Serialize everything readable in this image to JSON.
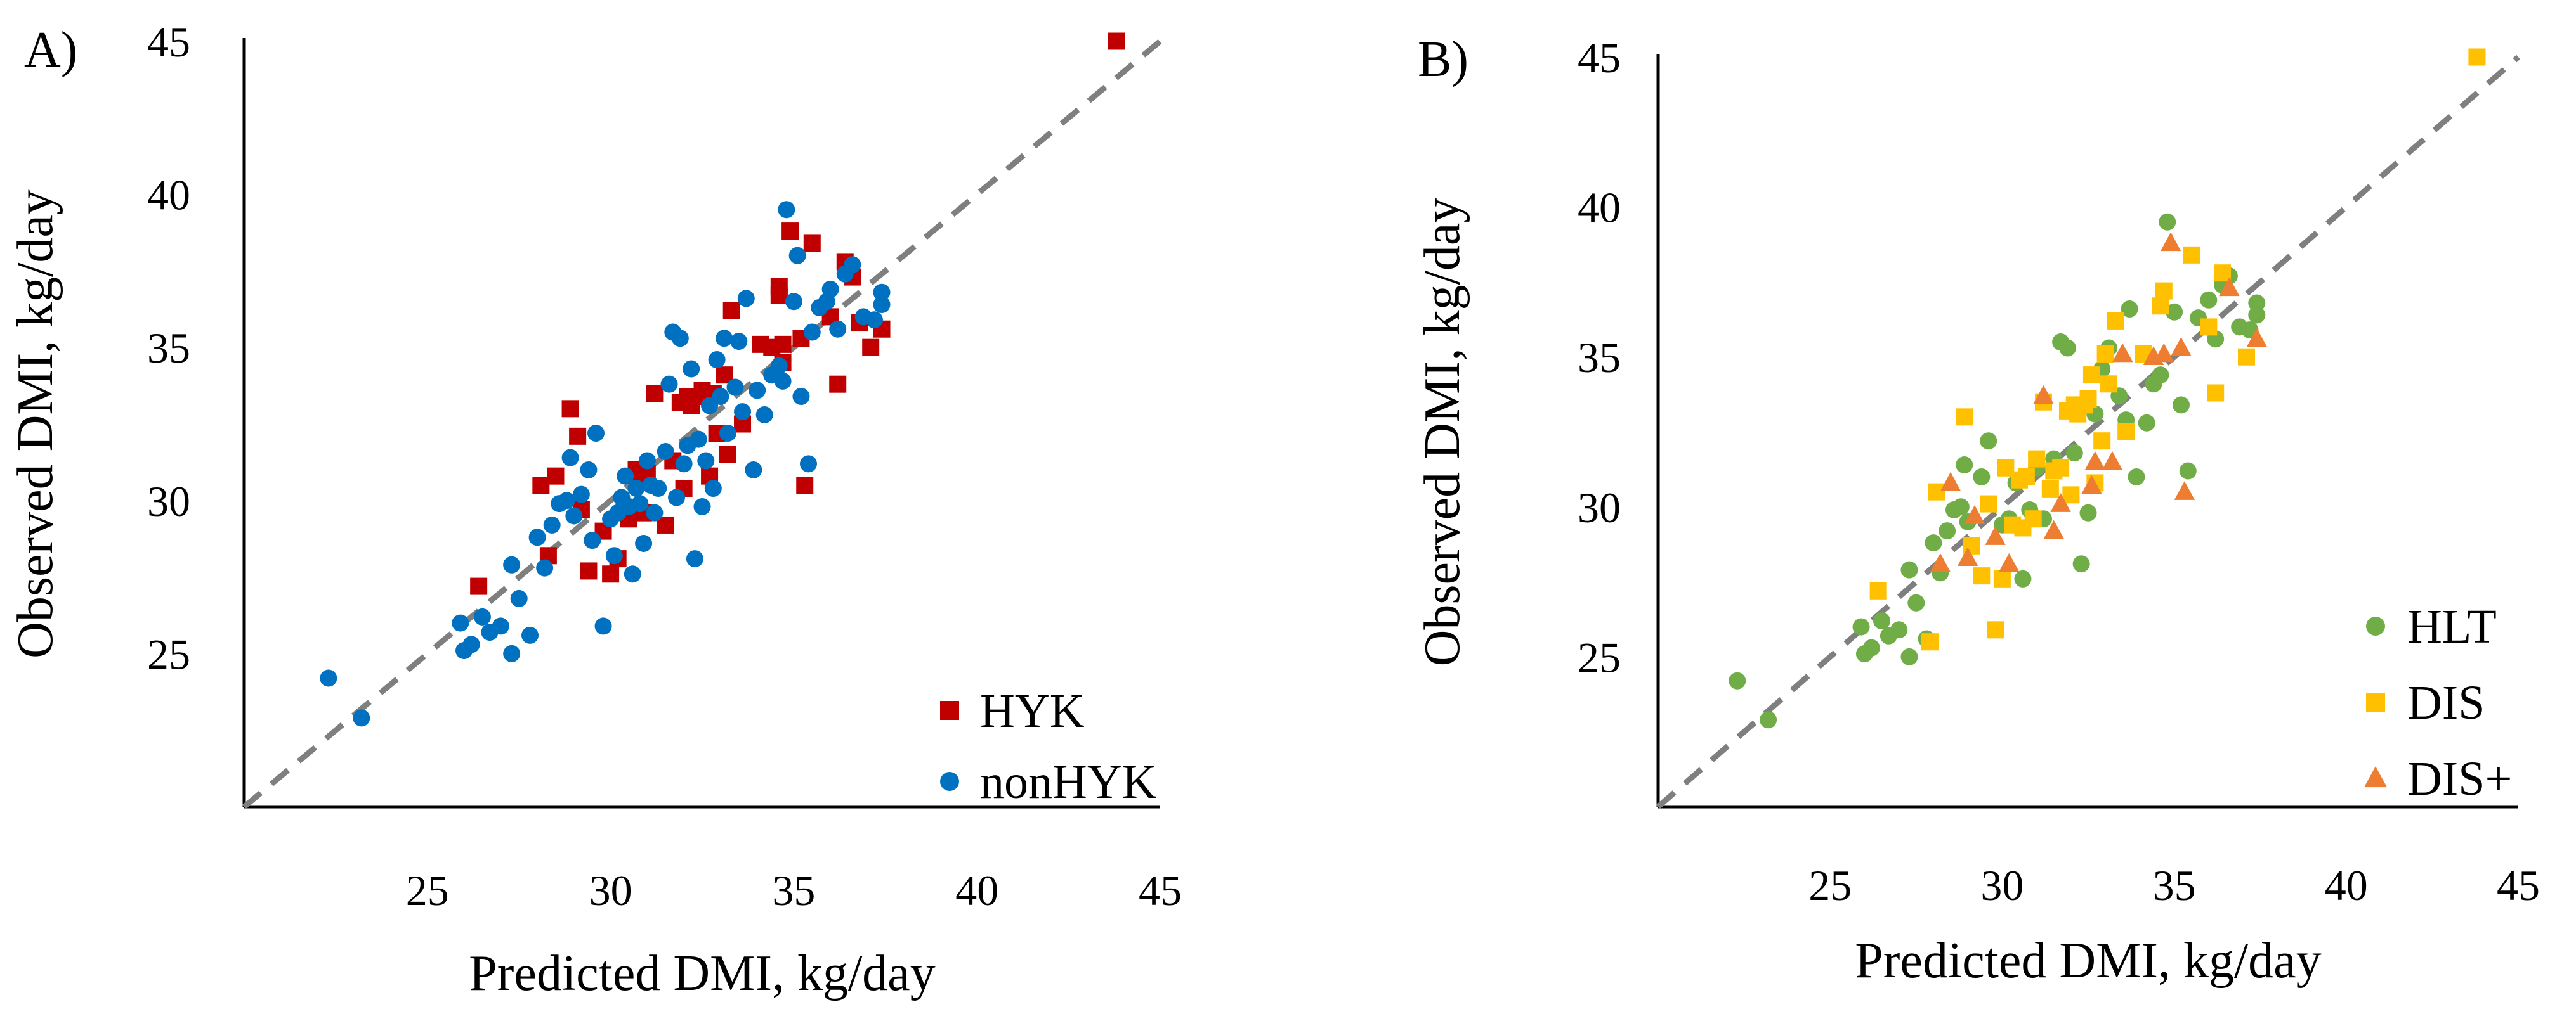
{
  "chart_data": [
    {
      "type": "scatter",
      "panel_label": "A)",
      "xlabel": "Predicted DMI, kg/day",
      "ylabel": "Observed DMI, kg/day",
      "xlim": [
        20,
        45
      ],
      "ylim": [
        20,
        45
      ],
      "x_ticks": [
        25,
        30,
        35,
        40,
        45
      ],
      "y_ticks": [
        25,
        30,
        35,
        40,
        45
      ],
      "reference_line": {
        "style": "dashed",
        "color": "#7f7f7f",
        "from": [
          20,
          20
        ],
        "to": [
          45,
          45
        ]
      },
      "legend_position": "bottom-right",
      "series": [
        {
          "name": "HYK",
          "marker": "square",
          "color": "#c00000",
          "points": [
            [
              43.8,
              45.0
            ],
            [
              26.4,
              27.2
            ],
            [
              28.1,
              30.5
            ],
            [
              28.5,
              30.8
            ],
            [
              28.9,
              33.0
            ],
            [
              29.2,
              29.7
            ],
            [
              29.4,
              27.7
            ],
            [
              29.8,
              29.0
            ],
            [
              30.0,
              27.6
            ],
            [
              30.2,
              28.1
            ],
            [
              30.5,
              29.4
            ],
            [
              30.7,
              31.0
            ],
            [
              30.9,
              29.6
            ],
            [
              31.2,
              33.5
            ],
            [
              31.0,
              30.9
            ],
            [
              31.5,
              29.2
            ],
            [
              31.7,
              31.3
            ],
            [
              31.9,
              33.2
            ],
            [
              32.0,
              30.4
            ],
            [
              32.1,
              33.4
            ],
            [
              32.2,
              33.1
            ],
            [
              32.4,
              33.4
            ],
            [
              32.5,
              33.6
            ],
            [
              32.7,
              30.8
            ],
            [
              32.9,
              32.2
            ],
            [
              33.1,
              34.1
            ],
            [
              33.2,
              31.5
            ],
            [
              33.3,
              36.2
            ],
            [
              33.6,
              32.5
            ],
            [
              34.1,
              35.1
            ],
            [
              34.4,
              35.0
            ],
            [
              34.6,
              36.7
            ],
            [
              34.7,
              35.1
            ],
            [
              34.9,
              38.8
            ],
            [
              35.2,
              35.3
            ],
            [
              35.5,
              38.4
            ],
            [
              35.3,
              30.5
            ],
            [
              36.0,
              36.0
            ],
            [
              36.2,
              33.8
            ],
            [
              36.4,
              37.8
            ],
            [
              36.6,
              37.3
            ],
            [
              36.8,
              35.8
            ],
            [
              37.1,
              35.0
            ],
            [
              37.4,
              35.6
            ],
            [
              34.7,
              34.5
            ],
            [
              34.6,
              37.0
            ],
            [
              32.8,
              33.5
            ],
            [
              28.3,
              28.2
            ],
            [
              30.8,
              30.6
            ],
            [
              29.1,
              32.1
            ]
          ]
        },
        {
          "name": "nonHYK",
          "marker": "circle",
          "color": "#0070c0",
          "points": [
            [
              22.3,
              24.2
            ],
            [
              23.2,
              22.9
            ],
            [
              25.9,
              26.0
            ],
            [
              26.0,
              25.1
            ],
            [
              26.2,
              25.3
            ],
            [
              26.5,
              26.2
            ],
            [
              26.7,
              25.7
            ],
            [
              27.0,
              25.9
            ],
            [
              27.3,
              27.9
            ],
            [
              27.3,
              25.0
            ],
            [
              27.5,
              26.8
            ],
            [
              27.8,
              25.6
            ],
            [
              28.0,
              28.8
            ],
            [
              28.2,
              27.8
            ],
            [
              28.4,
              29.2
            ],
            [
              28.6,
              29.9
            ],
            [
              28.8,
              30.0
            ],
            [
              28.9,
              31.4
            ],
            [
              29.0,
              29.5
            ],
            [
              29.2,
              30.2
            ],
            [
              29.4,
              31.0
            ],
            [
              29.5,
              28.7
            ],
            [
              29.6,
              32.2
            ],
            [
              29.8,
              25.9
            ],
            [
              30.0,
              29.4
            ],
            [
              30.1,
              28.2
            ],
            [
              30.2,
              29.6
            ],
            [
              30.3,
              30.1
            ],
            [
              30.4,
              30.8
            ],
            [
              30.5,
              29.8
            ],
            [
              30.6,
              27.6
            ],
            [
              30.7,
              30.4
            ],
            [
              30.8,
              29.9
            ],
            [
              30.9,
              28.6
            ],
            [
              31.0,
              31.3
            ],
            [
              31.1,
              30.5
            ],
            [
              31.2,
              29.6
            ],
            [
              31.3,
              30.4
            ],
            [
              31.5,
              31.6
            ],
            [
              31.6,
              33.8
            ],
            [
              31.7,
              35.5
            ],
            [
              31.8,
              30.1
            ],
            [
              31.9,
              35.3
            ],
            [
              32.0,
              31.2
            ],
            [
              32.1,
              31.8
            ],
            [
              32.2,
              34.3
            ],
            [
              32.3,
              28.1
            ],
            [
              32.4,
              32.0
            ],
            [
              32.5,
              29.8
            ],
            [
              32.6,
              31.3
            ],
            [
              32.7,
              33.1
            ],
            [
              32.8,
              30.4
            ],
            [
              32.9,
              34.6
            ],
            [
              33.0,
              33.4
            ],
            [
              33.1,
              35.3
            ],
            [
              33.2,
              32.2
            ],
            [
              33.4,
              33.7
            ],
            [
              33.5,
              35.2
            ],
            [
              33.6,
              32.9
            ],
            [
              33.7,
              36.6
            ],
            [
              33.9,
              31.0
            ],
            [
              34.0,
              33.6
            ],
            [
              34.2,
              32.8
            ],
            [
              34.4,
              34.1
            ],
            [
              34.6,
              34.4
            ],
            [
              34.7,
              33.9
            ],
            [
              34.8,
              39.5
            ],
            [
              35.0,
              36.5
            ],
            [
              35.1,
              38.0
            ],
            [
              35.2,
              33.4
            ],
            [
              35.4,
              31.2
            ],
            [
              35.5,
              35.5
            ],
            [
              35.7,
              36.3
            ],
            [
              35.9,
              36.5
            ],
            [
              36.0,
              36.9
            ],
            [
              36.2,
              35.6
            ],
            [
              36.4,
              37.4
            ],
            [
              36.6,
              37.7
            ],
            [
              36.9,
              36.0
            ],
            [
              37.2,
              35.9
            ],
            [
              37.4,
              36.4
            ],
            [
              37.4,
              36.8
            ]
          ]
        }
      ]
    },
    {
      "type": "scatter",
      "panel_label": "B)",
      "xlabel": "Predicted DMI, kg/day",
      "ylabel": "Observed DMI, kg/day",
      "xlim": [
        20,
        45
      ],
      "ylim": [
        20,
        45
      ],
      "x_ticks": [
        25,
        30,
        35,
        40,
        45
      ],
      "y_ticks": [
        25,
        30,
        35,
        40,
        45
      ],
      "reference_line": {
        "style": "dashed",
        "color": "#7f7f7f",
        "from": [
          20,
          20
        ],
        "to": [
          45,
          45
        ]
      },
      "legend_position": "bottom-right",
      "series": [
        {
          "name": "HLT",
          "marker": "circle",
          "color": "#70ad47",
          "points": [
            [
              22.3,
              24.2
            ],
            [
              23.2,
              22.9
            ],
            [
              25.9,
              26.0
            ],
            [
              26.0,
              25.1
            ],
            [
              26.2,
              25.3
            ],
            [
              26.5,
              26.2
            ],
            [
              26.7,
              25.7
            ],
            [
              27.0,
              25.9
            ],
            [
              27.3,
              27.9
            ],
            [
              27.3,
              25.0
            ],
            [
              27.5,
              26.8
            ],
            [
              27.8,
              25.6
            ],
            [
              28.0,
              28.8
            ],
            [
              28.2,
              27.8
            ],
            [
              28.4,
              29.2
            ],
            [
              28.6,
              29.9
            ],
            [
              28.8,
              30.0
            ],
            [
              28.9,
              31.4
            ],
            [
              29.0,
              29.5
            ],
            [
              29.4,
              31.0
            ],
            [
              29.6,
              32.2
            ],
            [
              30.0,
              29.4
            ],
            [
              30.2,
              29.6
            ],
            [
              30.4,
              30.8
            ],
            [
              30.6,
              27.6
            ],
            [
              30.8,
              29.9
            ],
            [
              31.0,
              31.3
            ],
            [
              31.2,
              29.6
            ],
            [
              31.5,
              31.6
            ],
            [
              31.7,
              35.5
            ],
            [
              31.9,
              35.3
            ],
            [
              32.1,
              31.8
            ],
            [
              32.3,
              28.1
            ],
            [
              32.5,
              29.8
            ],
            [
              32.7,
              33.1
            ],
            [
              32.9,
              34.6
            ],
            [
              33.1,
              35.3
            ],
            [
              33.4,
              33.7
            ],
            [
              33.6,
              32.9
            ],
            [
              33.7,
              36.6
            ],
            [
              33.9,
              31.0
            ],
            [
              34.2,
              32.8
            ],
            [
              34.4,
              34.1
            ],
            [
              34.6,
              34.4
            ],
            [
              34.8,
              39.5
            ],
            [
              35.0,
              36.5
            ],
            [
              35.2,
              33.4
            ],
            [
              35.4,
              31.2
            ],
            [
              35.7,
              36.3
            ],
            [
              36.0,
              36.9
            ],
            [
              36.2,
              35.6
            ],
            [
              36.4,
              37.4
            ],
            [
              36.6,
              37.7
            ],
            [
              36.9,
              36.0
            ],
            [
              37.2,
              35.9
            ],
            [
              37.4,
              36.4
            ],
            [
              37.4,
              36.8
            ]
          ]
        },
        {
          "name": "DIS",
          "marker": "square",
          "color": "#ffc000",
          "points": [
            [
              43.8,
              45.0
            ],
            [
              26.4,
              27.2
            ],
            [
              28.1,
              30.5
            ],
            [
              27.9,
              25.5
            ],
            [
              28.9,
              33.0
            ],
            [
              29.1,
              28.7
            ],
            [
              29.4,
              27.7
            ],
            [
              29.6,
              30.1
            ],
            [
              29.8,
              25.9
            ],
            [
              30.0,
              27.6
            ],
            [
              30.1,
              31.3
            ],
            [
              30.3,
              29.4
            ],
            [
              30.5,
              30.9
            ],
            [
              30.6,
              29.3
            ],
            [
              30.7,
              31.0
            ],
            [
              30.9,
              29.6
            ],
            [
              31.0,
              31.6
            ],
            [
              31.2,
              33.5
            ],
            [
              31.4,
              30.6
            ],
            [
              31.7,
              31.3
            ],
            [
              31.9,
              33.2
            ],
            [
              32.0,
              30.4
            ],
            [
              32.1,
              33.4
            ],
            [
              32.2,
              33.1
            ],
            [
              32.4,
              33.4
            ],
            [
              32.5,
              33.6
            ],
            [
              32.7,
              30.8
            ],
            [
              32.9,
              32.2
            ],
            [
              33.1,
              34.1
            ],
            [
              33.3,
              36.2
            ],
            [
              33.6,
              32.5
            ],
            [
              34.1,
              35.1
            ],
            [
              34.6,
              36.7
            ],
            [
              34.7,
              37.2
            ],
            [
              35.5,
              38.4
            ],
            [
              36.0,
              36.0
            ],
            [
              36.2,
              33.8
            ],
            [
              36.4,
              37.8
            ],
            [
              37.1,
              35.0
            ],
            [
              33.0,
              35.1
            ],
            [
              32.6,
              34.4
            ],
            [
              31.5,
              31.2
            ]
          ]
        },
        {
          "name": "DIS+",
          "marker": "triangle",
          "color": "#ed7d31",
          "points": [
            [
              28.2,
              28.1
            ],
            [
              28.5,
              30.8
            ],
            [
              29.2,
              29.7
            ],
            [
              30.2,
              28.1
            ],
            [
              31.2,
              33.7
            ],
            [
              31.5,
              29.2
            ],
            [
              31.7,
              30.1
            ],
            [
              32.6,
              30.7
            ],
            [
              32.7,
              31.5
            ],
            [
              33.2,
              31.5
            ],
            [
              33.5,
              35.1
            ],
            [
              34.4,
              35.0
            ],
            [
              34.7,
              35.1
            ],
            [
              34.9,
              38.8
            ],
            [
              35.2,
              35.3
            ],
            [
              35.3,
              30.5
            ],
            [
              36.6,
              37.3
            ],
            [
              37.4,
              35.6
            ],
            [
              29.0,
              28.3
            ],
            [
              29.8,
              29.0
            ]
          ]
        }
      ]
    }
  ]
}
